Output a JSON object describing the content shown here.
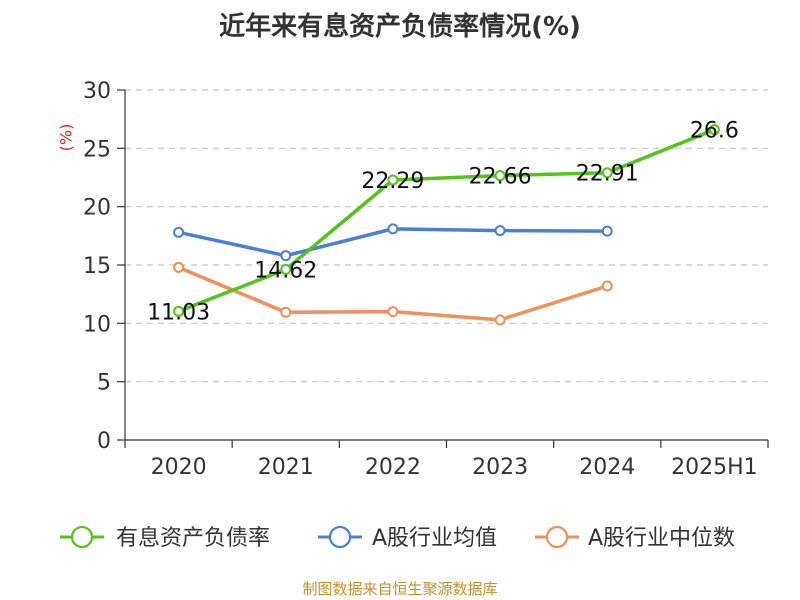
{
  "chart_data": {
    "type": "line",
    "title": "近年来有息资产负债率情况(%)",
    "ylabel": "(%)",
    "xlabel": "",
    "categories": [
      "2020",
      "2021",
      "2022",
      "2023",
      "2024",
      "2025H1"
    ],
    "ylim": [
      0,
      30
    ],
    "yticks": [
      0,
      5,
      10,
      15,
      20,
      25,
      30
    ],
    "grid": true,
    "legend_position": "bottom",
    "series": [
      {
        "name": "有息资产负债率",
        "color": "#52c41a",
        "values": [
          11.03,
          14.62,
          22.29,
          22.66,
          22.91,
          26.6
        ],
        "labels": [
          "11.03",
          "14.62",
          "22.29",
          "22.66",
          "22.91",
          "26.6"
        ]
      },
      {
        "name": "A股行业均值",
        "color": "#4a7fd8",
        "values": [
          17.8,
          15.8,
          18.1,
          17.95,
          17.9,
          null
        ]
      },
      {
        "name": "A股行业中位数",
        "color": "#f28e5a",
        "values": [
          14.8,
          10.95,
          11.0,
          10.3,
          13.2,
          null
        ]
      }
    ]
  },
  "source": "制图数据来自恒生聚源数据库"
}
